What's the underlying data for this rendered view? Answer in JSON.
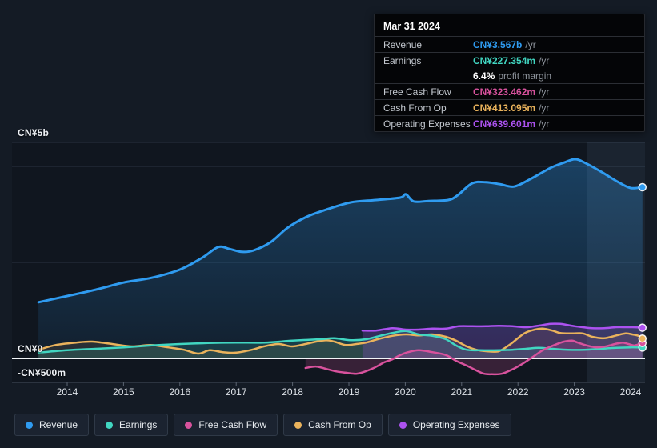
{
  "colors": {
    "revenue": "#2F9BF0",
    "earnings": "#41D6C1",
    "free_cash_flow": "#D8529D",
    "cash_from_op": "#EAB35C",
    "operating_expenses": "#AC52F0",
    "background": "#141B25",
    "plot_background": "#10161F",
    "gridline": "#2A3340",
    "zero_line": "#F2F5F8",
    "axis_line": "#434C5A",
    "tick": "#5B6572"
  },
  "tooltip": {
    "title": "Mar 31 2024",
    "rows": {
      "revenue": {
        "label": "Revenue",
        "value": "CN¥3.567b",
        "suffix": "/yr"
      },
      "earnings": {
        "label": "Earnings",
        "value": "CN¥227.354m",
        "suffix": "/yr"
      },
      "profit_margin": {
        "value": "6.4%",
        "suffix": "profit margin"
      },
      "free_cash_flow": {
        "label": "Free Cash Flow",
        "value": "CN¥323.462m",
        "suffix": "/yr"
      },
      "cash_from_op": {
        "label": "Cash From Op",
        "value": "CN¥413.095m",
        "suffix": "/yr"
      },
      "operating_expenses": {
        "label": "Operating Expenses",
        "value": "CN¥639.601m",
        "suffix": "/yr"
      }
    }
  },
  "y_axis": {
    "labels": [
      "CN¥5b",
      "CN¥0",
      "-CN¥500m"
    ]
  },
  "x_axis": {
    "labels": [
      "2014",
      "2015",
      "2016",
      "2017",
      "2018",
      "2019",
      "2020",
      "2021",
      "2022",
      "2023",
      "2024"
    ]
  },
  "legend": {
    "items": [
      {
        "label": "Revenue"
      },
      {
        "label": "Earnings"
      },
      {
        "label": "Free Cash Flow"
      },
      {
        "label": "Cash From Op"
      },
      {
        "label": "Operating Expenses"
      }
    ]
  },
  "chart_data": {
    "type": "area",
    "unit": "CN¥ billions",
    "x_range": [
      2013.4,
      2024.3
    ],
    "ylim": [
      -0.5,
      5
    ],
    "grid": "horizontal",
    "legend_position": "bottom",
    "y_ticks": [
      {
        "label": "CN¥5b",
        "value": 5
      },
      {
        "label": "CN¥0",
        "value": 0
      },
      {
        "label": "-CN¥500m",
        "value": -0.5
      }
    ],
    "series": [
      {
        "name": "Revenue",
        "color": "#2F9BF0",
        "points": [
          [
            2013.49,
            1.17
          ],
          [
            2014.0,
            1.3
          ],
          [
            2014.5,
            1.43
          ],
          [
            2015.0,
            1.58
          ],
          [
            2015.5,
            1.68
          ],
          [
            2016.0,
            1.85
          ],
          [
            2016.4,
            2.1
          ],
          [
            2016.68,
            2.32
          ],
          [
            2016.88,
            2.28
          ],
          [
            2017.1,
            2.22
          ],
          [
            2017.31,
            2.25
          ],
          [
            2017.61,
            2.42
          ],
          [
            2017.91,
            2.72
          ],
          [
            2018.25,
            2.95
          ],
          [
            2018.6,
            3.1
          ],
          [
            2019.03,
            3.25
          ],
          [
            2019.48,
            3.3
          ],
          [
            2019.91,
            3.35
          ],
          [
            2020.01,
            3.42
          ],
          [
            2020.15,
            3.27
          ],
          [
            2020.41,
            3.28
          ],
          [
            2020.76,
            3.3
          ],
          [
            2020.93,
            3.4
          ],
          [
            2021.19,
            3.65
          ],
          [
            2021.43,
            3.67
          ],
          [
            2021.68,
            3.63
          ],
          [
            2021.93,
            3.58
          ],
          [
            2022.21,
            3.73
          ],
          [
            2022.58,
            3.97
          ],
          [
            2022.82,
            4.08
          ],
          [
            2023.01,
            4.15
          ],
          [
            2023.18,
            4.08
          ],
          [
            2023.49,
            3.88
          ],
          [
            2023.77,
            3.68
          ],
          [
            2024.0,
            3.55
          ],
          [
            2024.21,
            3.567
          ]
        ]
      },
      {
        "name": "Earnings",
        "color": "#41D6C1",
        "points": [
          [
            2013.49,
            0.12
          ],
          [
            2014.0,
            0.17
          ],
          [
            2014.5,
            0.2
          ],
          [
            2015.0,
            0.23
          ],
          [
            2015.5,
            0.27
          ],
          [
            2016.0,
            0.3
          ],
          [
            2016.5,
            0.32
          ],
          [
            2017.0,
            0.33
          ],
          [
            2017.5,
            0.33
          ],
          [
            2018.0,
            0.37
          ],
          [
            2018.49,
            0.4
          ],
          [
            2018.74,
            0.42
          ],
          [
            2019.03,
            0.38
          ],
          [
            2019.31,
            0.4
          ],
          [
            2019.55,
            0.47
          ],
          [
            2019.77,
            0.53
          ],
          [
            2020.01,
            0.57
          ],
          [
            2020.24,
            0.5
          ],
          [
            2020.48,
            0.47
          ],
          [
            2020.72,
            0.4
          ],
          [
            2020.9,
            0.27
          ],
          [
            2021.09,
            0.18
          ],
          [
            2021.33,
            0.17
          ],
          [
            2021.66,
            0.17
          ],
          [
            2021.9,
            0.18
          ],
          [
            2022.14,
            0.2
          ],
          [
            2022.37,
            0.22
          ],
          [
            2022.61,
            0.2
          ],
          [
            2022.89,
            0.18
          ],
          [
            2023.18,
            0.18
          ],
          [
            2023.46,
            0.2
          ],
          [
            2023.74,
            0.22
          ],
          [
            2024.0,
            0.23
          ],
          [
            2024.21,
            0.227
          ]
        ]
      },
      {
        "name": "Free Cash Flow",
        "color": "#D8529D",
        "points": [
          [
            2018.23,
            -0.2
          ],
          [
            2018.42,
            -0.17
          ],
          [
            2018.6,
            -0.22
          ],
          [
            2018.77,
            -0.27
          ],
          [
            2018.96,
            -0.3
          ],
          [
            2019.13,
            -0.32
          ],
          [
            2019.27,
            -0.28
          ],
          [
            2019.44,
            -0.2
          ],
          [
            2019.63,
            -0.08
          ],
          [
            2019.77,
            -0.02
          ],
          [
            2019.91,
            0.07
          ],
          [
            2020.05,
            0.13
          ],
          [
            2020.24,
            0.17
          ],
          [
            2020.48,
            0.13
          ],
          [
            2020.72,
            0.07
          ],
          [
            2020.9,
            -0.05
          ],
          [
            2021.09,
            -0.15
          ],
          [
            2021.26,
            -0.25
          ],
          [
            2021.4,
            -0.32
          ],
          [
            2021.54,
            -0.33
          ],
          [
            2021.71,
            -0.32
          ],
          [
            2021.9,
            -0.23
          ],
          [
            2022.07,
            -0.12
          ],
          [
            2022.25,
            0.02
          ],
          [
            2022.44,
            0.17
          ],
          [
            2022.65,
            0.28
          ],
          [
            2022.82,
            0.35
          ],
          [
            2022.96,
            0.37
          ],
          [
            2023.06,
            0.33
          ],
          [
            2023.22,
            0.27
          ],
          [
            2023.39,
            0.23
          ],
          [
            2023.56,
            0.25
          ],
          [
            2023.72,
            0.3
          ],
          [
            2023.86,
            0.33
          ],
          [
            2023.96,
            0.3
          ],
          [
            2024.07,
            0.27
          ],
          [
            2024.21,
            0.323
          ]
        ]
      },
      {
        "name": "Cash From Op",
        "color": "#EAB35C",
        "points": [
          [
            2013.49,
            0.18
          ],
          [
            2013.8,
            0.28
          ],
          [
            2014.16,
            0.33
          ],
          [
            2014.44,
            0.35
          ],
          [
            2014.8,
            0.3
          ],
          [
            2015.15,
            0.25
          ],
          [
            2015.48,
            0.28
          ],
          [
            2015.79,
            0.23
          ],
          [
            2016.07,
            0.18
          ],
          [
            2016.33,
            0.1
          ],
          [
            2016.53,
            0.17
          ],
          [
            2016.76,
            0.13
          ],
          [
            2017.0,
            0.12
          ],
          [
            2017.28,
            0.18
          ],
          [
            2017.49,
            0.25
          ],
          [
            2017.75,
            0.3
          ],
          [
            2017.99,
            0.25
          ],
          [
            2018.23,
            0.3
          ],
          [
            2018.42,
            0.35
          ],
          [
            2018.6,
            0.38
          ],
          [
            2018.74,
            0.35
          ],
          [
            2018.94,
            0.28
          ],
          [
            2019.13,
            0.3
          ],
          [
            2019.31,
            0.33
          ],
          [
            2019.51,
            0.4
          ],
          [
            2019.77,
            0.47
          ],
          [
            2020.01,
            0.5
          ],
          [
            2020.24,
            0.48
          ],
          [
            2020.48,
            0.5
          ],
          [
            2020.72,
            0.45
          ],
          [
            2020.9,
            0.37
          ],
          [
            2021.09,
            0.25
          ],
          [
            2021.26,
            0.18
          ],
          [
            2021.43,
            0.15
          ],
          [
            2021.66,
            0.15
          ],
          [
            2021.87,
            0.3
          ],
          [
            2022.11,
            0.52
          ],
          [
            2022.3,
            0.6
          ],
          [
            2022.44,
            0.62
          ],
          [
            2022.61,
            0.58
          ],
          [
            2022.75,
            0.53
          ],
          [
            2022.96,
            0.52
          ],
          [
            2023.15,
            0.52
          ],
          [
            2023.32,
            0.45
          ],
          [
            2023.53,
            0.42
          ],
          [
            2023.72,
            0.47
          ],
          [
            2023.91,
            0.52
          ],
          [
            2024.03,
            0.5
          ],
          [
            2024.14,
            0.47
          ],
          [
            2024.21,
            0.413
          ]
        ]
      },
      {
        "name": "Operating Expenses",
        "color": "#AC52F0",
        "points": [
          [
            2019.24,
            0.58
          ],
          [
            2019.48,
            0.58
          ],
          [
            2019.77,
            0.63
          ],
          [
            2020.01,
            0.6
          ],
          [
            2020.24,
            0.6
          ],
          [
            2020.48,
            0.62
          ],
          [
            2020.72,
            0.62
          ],
          [
            2020.95,
            0.67
          ],
          [
            2021.19,
            0.67
          ],
          [
            2021.43,
            0.67
          ],
          [
            2021.66,
            0.68
          ],
          [
            2021.9,
            0.67
          ],
          [
            2022.14,
            0.65
          ],
          [
            2022.35,
            0.68
          ],
          [
            2022.58,
            0.72
          ],
          [
            2022.75,
            0.72
          ],
          [
            2022.86,
            0.7
          ],
          [
            2023.01,
            0.67
          ],
          [
            2023.15,
            0.65
          ],
          [
            2023.32,
            0.63
          ],
          [
            2023.53,
            0.63
          ],
          [
            2023.74,
            0.65
          ],
          [
            2023.91,
            0.65
          ],
          [
            2024.03,
            0.65
          ],
          [
            2024.21,
            0.64
          ]
        ]
      }
    ]
  }
}
